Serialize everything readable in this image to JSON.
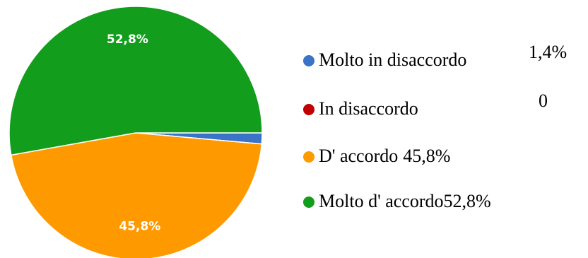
{
  "chart_data": {
    "type": "pie",
    "categories": [
      "Molto in disaccordo",
      "In disaccordo",
      "D' accordo",
      "Molto d' accordo"
    ],
    "values": [
      1.4,
      0,
      45.8,
      52.8
    ],
    "value_labels": [
      "1,4%",
      "0",
      "45,8%",
      "52,8%"
    ],
    "colors": [
      "#3a73c8",
      "#c00000",
      "#ff9900",
      "#129e1c"
    ]
  }
}
